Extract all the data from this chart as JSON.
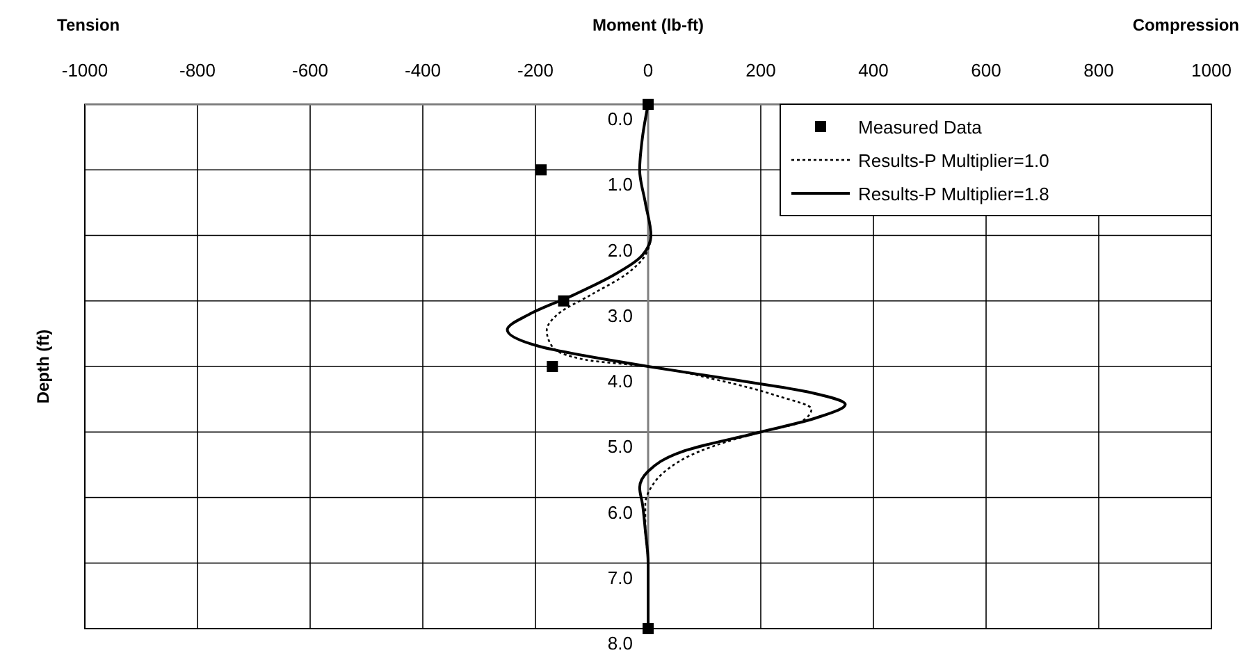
{
  "chart_data": {
    "type": "line",
    "xlabel": "Moment (lb-ft)",
    "ylabel": "Depth (ft)",
    "annotations": [
      "Tension",
      "Compression"
    ],
    "xlim": [
      -1000,
      1000
    ],
    "xticks": [
      -1000,
      -800,
      -600,
      -400,
      -200,
      0,
      200,
      400,
      600,
      800,
      1000
    ],
    "ylim": [
      8,
      0
    ],
    "yticks": [
      {
        "value": 0,
        "label": "0.0"
      },
      {
        "value": 1,
        "label": "1.0"
      },
      {
        "value": 2,
        "label": "2.0"
      },
      {
        "value": 3,
        "label": "3.0"
      },
      {
        "value": 4,
        "label": "4.0"
      },
      {
        "value": 5,
        "label": "5.0"
      },
      {
        "value": 6,
        "label": "6.0"
      },
      {
        "value": 7,
        "label": "7.0"
      },
      {
        "value": 8,
        "label": "8.0"
      }
    ],
    "grid": true,
    "legend": "top right",
    "series": [
      {
        "name": "Measured Data",
        "type": "scatter",
        "marker": "square",
        "color": "#000000",
        "x": [
          0,
          -190,
          -150,
          -170,
          0
        ],
        "values": [
          0,
          1,
          3,
          4,
          8
        ]
      },
      {
        "name": "Results-P Multiplier=1.0",
        "type": "line",
        "marker": "none",
        "line_style": "dotted",
        "color": "#000000",
        "x": [
          0,
          -10,
          -15,
          -5,
          5,
          -5,
          -40,
          -100,
          -160,
          -180,
          -170,
          -110,
          0,
          120,
          230,
          290,
          270,
          200,
          90,
          30,
          5,
          -5,
          -5,
          0,
          0
        ],
        "values": [
          0,
          0.5,
          1,
          1.5,
          2,
          2.3,
          2.6,
          2.9,
          3.2,
          3.45,
          3.7,
          3.9,
          4.0,
          4.2,
          4.45,
          4.65,
          4.85,
          5.0,
          5.3,
          5.6,
          5.85,
          6.1,
          6.5,
          7,
          8
        ]
      },
      {
        "name": "Results-P Multiplier=1.8",
        "type": "line",
        "marker": "none",
        "line_style": "solid",
        "color": "#000000",
        "x": [
          0,
          -10,
          -15,
          -5,
          5,
          -10,
          -60,
          -130,
          -210,
          -250,
          -190,
          -70,
          0,
          150,
          290,
          350,
          300,
          200,
          60,
          0,
          -15,
          -10,
          -5,
          0,
          0
        ],
        "values": [
          0,
          0.5,
          1,
          1.5,
          2,
          2.3,
          2.6,
          2.9,
          3.2,
          3.44,
          3.7,
          3.9,
          4.0,
          4.2,
          4.4,
          4.58,
          4.78,
          5.0,
          5.3,
          5.6,
          5.85,
          6.1,
          6.5,
          7,
          8
        ]
      }
    ]
  }
}
